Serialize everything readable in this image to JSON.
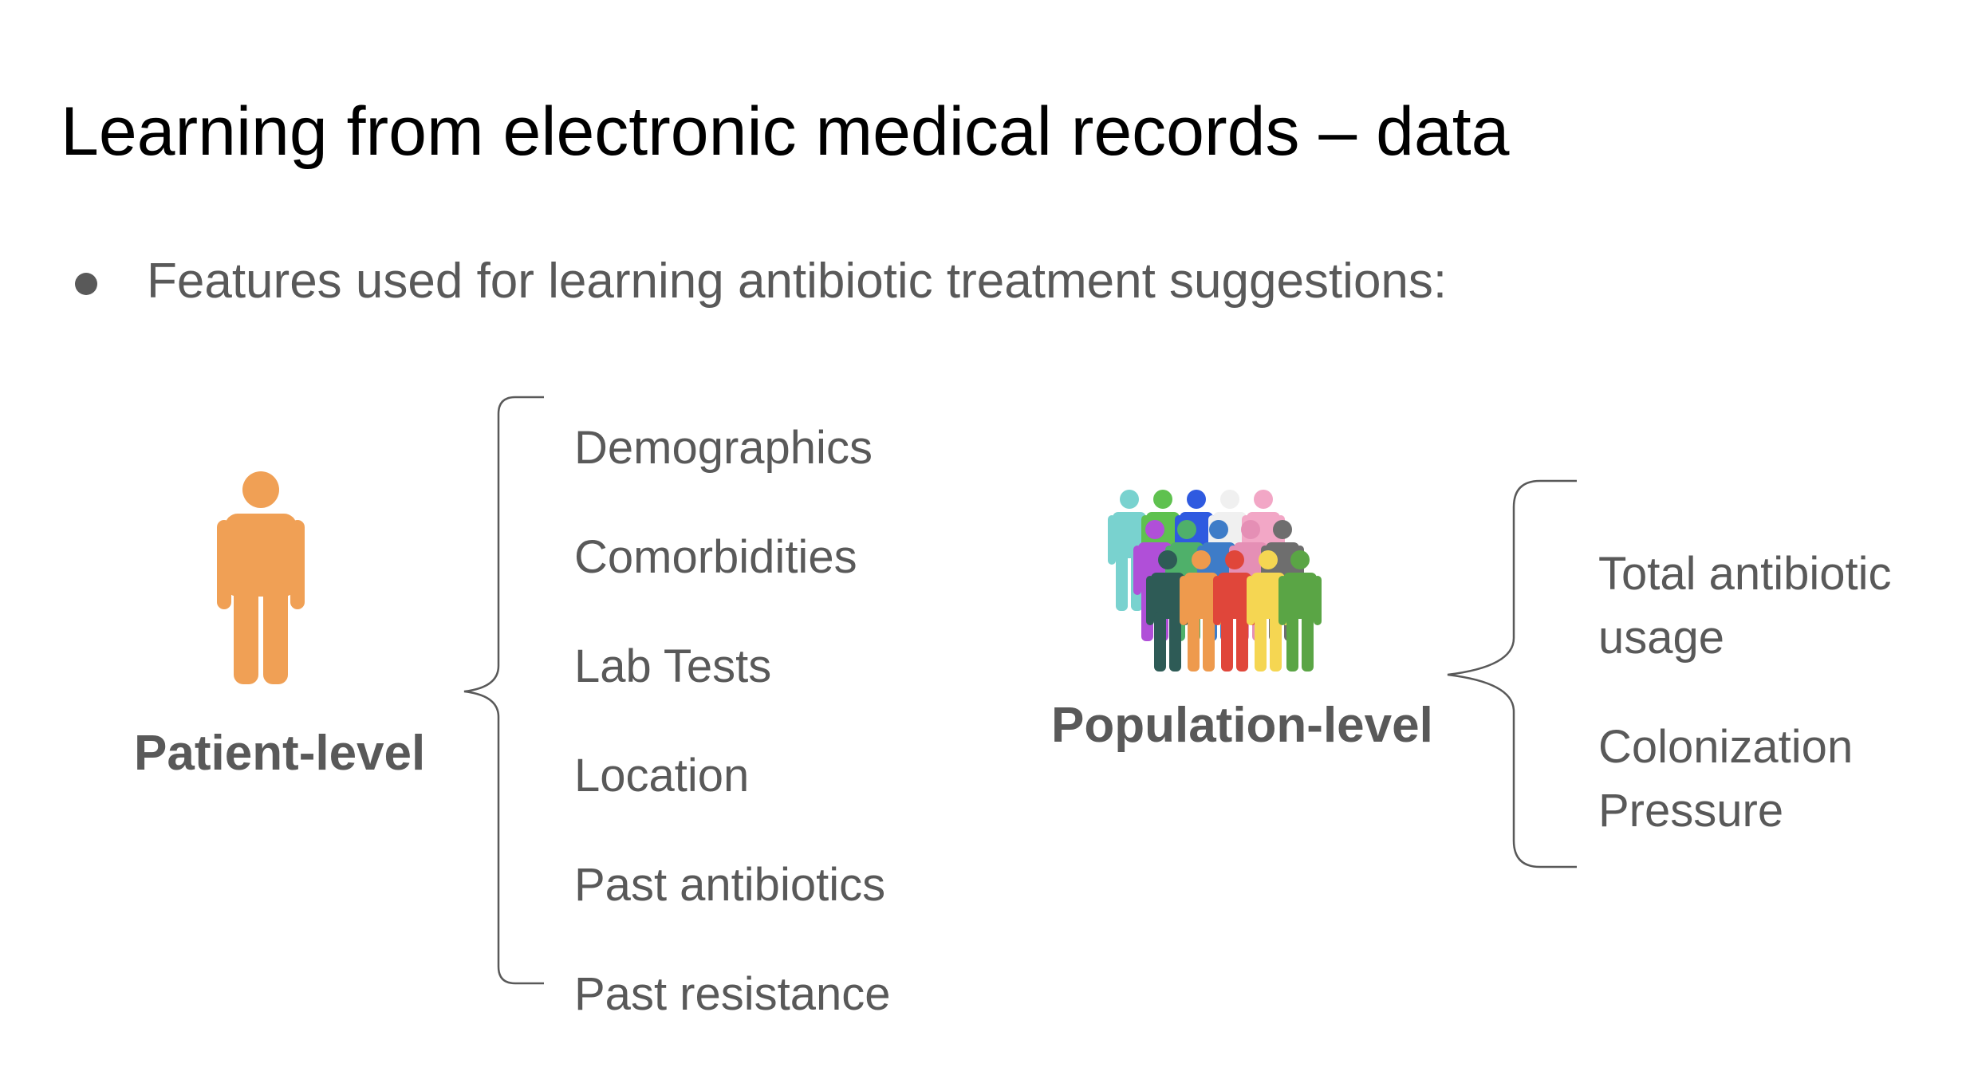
{
  "slide": {
    "title": "Learning from electronic medical records – data",
    "bullet": "Features used for learning antibiotic treatment suggestions:"
  },
  "patient": {
    "label": "Patient-level",
    "icon": "person-icon",
    "icon_color": "#F0A055",
    "features": [
      "Demographics",
      "Comorbidities",
      "Lab Tests",
      "Location",
      "Past antibiotics",
      "Past resistance"
    ]
  },
  "population": {
    "label": "Population-level",
    "icon": "crowd-icon",
    "features": [
      {
        "line1": "Total antibiotic",
        "line2": "usage"
      },
      {
        "line1": "Colonization",
        "line2": "Pressure"
      }
    ]
  },
  "colors": {
    "title": "#000000",
    "body_text": "#595959",
    "brace": "#595959",
    "crowd": [
      "#79D2CF",
      "#5FC14F",
      "#2F5AE0",
      "#F0F0F0",
      "#F2A7C6",
      "#B04FD8",
      "#4FB06A",
      "#3E7CC8",
      "#E58FB5",
      "#6E6E6E",
      "#2E5B56",
      "#EE9A4D",
      "#E0463A",
      "#F5D652",
      "#5AA545"
    ]
  }
}
